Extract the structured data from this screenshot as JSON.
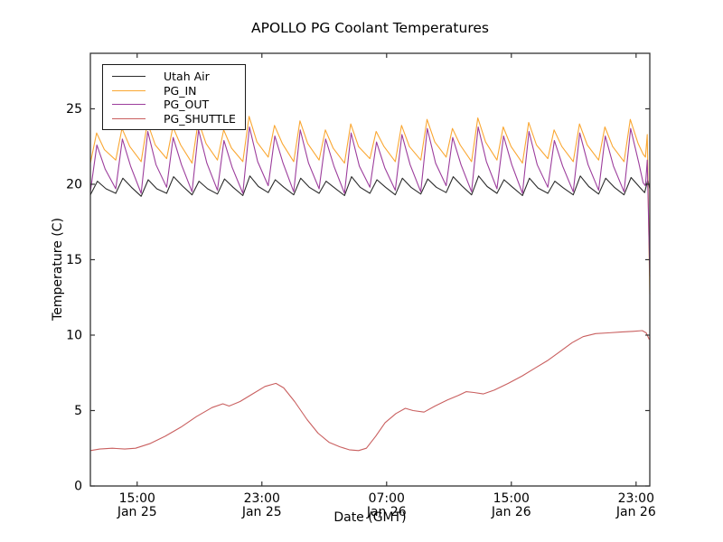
{
  "figure": {
    "title": "APOLLO PG Coolant Temperatures",
    "xlabel": "Date (GMT)",
    "ylabel": "Temperature (C)"
  },
  "colors": {
    "axis": "#333333",
    "background": "#ffffff",
    "utah_air": "#2b2b2b",
    "pg_in": "#faa732",
    "pg_out": "#9c3d9c",
    "pg_shuttle": "#c95f5f"
  },
  "chart_data": {
    "type": "line",
    "title": "APOLLO PG Coolant Temperatures",
    "xlabel": "Date (GMT)",
    "ylabel": "Temperature (C)",
    "grid": false,
    "legend_position": "upper left",
    "x_unit_hours_from": "Jan 25 12:00",
    "xlim": [
      0,
      35.88
    ],
    "ylim": [
      0,
      28.68
    ],
    "y_ticks": [
      0,
      5,
      10,
      15,
      20,
      25
    ],
    "x_ticks": [
      {
        "t": 3,
        "time": "15:00",
        "date": "Jan 25"
      },
      {
        "t": 11,
        "time": "23:00",
        "date": "Jan 25"
      },
      {
        "t": 19,
        "time": "07:00",
        "date": "Jan 26"
      },
      {
        "t": 27,
        "time": "15:00",
        "date": "Jan 26"
      },
      {
        "t": 35,
        "time": "23:00",
        "date": "Jan 26"
      }
    ],
    "series": [
      {
        "name": "Utah Air",
        "color": "#2b2b2b",
        "points": [
          [
            0.0,
            19.3
          ],
          [
            0.45,
            20.2
          ],
          [
            1.0,
            19.7
          ],
          [
            1.63,
            19.4
          ],
          [
            2.08,
            20.4
          ],
          [
            2.63,
            19.8
          ],
          [
            3.26,
            19.2
          ],
          [
            3.71,
            20.3
          ],
          [
            4.26,
            19.7
          ],
          [
            4.89,
            19.4
          ],
          [
            5.34,
            20.5
          ],
          [
            5.89,
            19.9
          ],
          [
            6.52,
            19.3
          ],
          [
            6.97,
            20.2
          ],
          [
            7.52,
            19.7
          ],
          [
            8.15,
            19.35
          ],
          [
            8.6,
            20.35
          ],
          [
            9.15,
            19.8
          ],
          [
            9.78,
            19.25
          ],
          [
            10.23,
            20.55
          ],
          [
            10.78,
            19.85
          ],
          [
            11.41,
            19.45
          ],
          [
            11.86,
            20.3
          ],
          [
            12.41,
            19.8
          ],
          [
            13.04,
            19.3
          ],
          [
            13.49,
            20.4
          ],
          [
            14.04,
            19.8
          ],
          [
            14.67,
            19.4
          ],
          [
            15.12,
            20.2
          ],
          [
            15.67,
            19.75
          ],
          [
            16.3,
            19.25
          ],
          [
            16.75,
            20.5
          ],
          [
            17.3,
            19.8
          ],
          [
            17.93,
            19.4
          ],
          [
            18.38,
            20.3
          ],
          [
            18.93,
            19.8
          ],
          [
            19.56,
            19.3
          ],
          [
            20.01,
            20.4
          ],
          [
            20.56,
            19.8
          ],
          [
            21.19,
            19.35
          ],
          [
            21.64,
            20.35
          ],
          [
            22.19,
            19.8
          ],
          [
            22.82,
            19.45
          ],
          [
            23.27,
            20.5
          ],
          [
            23.82,
            19.9
          ],
          [
            24.45,
            19.3
          ],
          [
            24.9,
            20.55
          ],
          [
            25.45,
            19.85
          ],
          [
            26.08,
            19.4
          ],
          [
            26.53,
            20.3
          ],
          [
            27.08,
            19.8
          ],
          [
            27.71,
            19.25
          ],
          [
            28.16,
            20.4
          ],
          [
            28.71,
            19.75
          ],
          [
            29.34,
            19.4
          ],
          [
            29.79,
            20.2
          ],
          [
            30.34,
            19.75
          ],
          [
            30.97,
            19.3
          ],
          [
            31.42,
            20.55
          ],
          [
            31.97,
            19.85
          ],
          [
            32.6,
            19.35
          ],
          [
            33.05,
            20.4
          ],
          [
            33.6,
            19.8
          ],
          [
            34.23,
            19.3
          ],
          [
            34.68,
            20.45
          ],
          [
            35.23,
            19.8
          ],
          [
            35.55,
            19.45
          ],
          [
            35.75,
            20.3
          ],
          [
            35.88,
            19.7
          ]
        ]
      },
      {
        "name": "PG_IN",
        "color": "#faa732",
        "points": [
          [
            0.0,
            21.4
          ],
          [
            0.4,
            23.4
          ],
          [
            0.9,
            22.3
          ],
          [
            1.63,
            21.6
          ],
          [
            2.03,
            23.7
          ],
          [
            2.53,
            22.5
          ],
          [
            3.26,
            21.5
          ],
          [
            3.66,
            24.1
          ],
          [
            4.16,
            22.6
          ],
          [
            4.89,
            21.7
          ],
          [
            5.29,
            23.8
          ],
          [
            5.79,
            22.6
          ],
          [
            6.52,
            21.4
          ],
          [
            6.92,
            24.2
          ],
          [
            7.42,
            22.7
          ],
          [
            8.15,
            21.6
          ],
          [
            8.55,
            23.6
          ],
          [
            9.05,
            22.4
          ],
          [
            9.78,
            21.5
          ],
          [
            10.18,
            24.5
          ],
          [
            10.68,
            22.8
          ],
          [
            11.41,
            21.8
          ],
          [
            11.81,
            23.9
          ],
          [
            12.31,
            22.7
          ],
          [
            13.04,
            21.5
          ],
          [
            13.44,
            24.2
          ],
          [
            13.94,
            22.7
          ],
          [
            14.67,
            21.6
          ],
          [
            15.07,
            23.6
          ],
          [
            15.57,
            22.4
          ],
          [
            16.3,
            21.4
          ],
          [
            16.7,
            24.0
          ],
          [
            17.2,
            22.5
          ],
          [
            17.93,
            21.7
          ],
          [
            18.33,
            23.5
          ],
          [
            18.83,
            22.5
          ],
          [
            19.56,
            21.5
          ],
          [
            19.96,
            23.9
          ],
          [
            20.46,
            22.5
          ],
          [
            21.19,
            21.6
          ],
          [
            21.59,
            24.3
          ],
          [
            22.09,
            22.8
          ],
          [
            22.82,
            21.8
          ],
          [
            23.22,
            23.7
          ],
          [
            23.72,
            22.6
          ],
          [
            24.45,
            21.5
          ],
          [
            24.85,
            24.4
          ],
          [
            25.35,
            22.8
          ],
          [
            26.08,
            21.6
          ],
          [
            26.48,
            23.8
          ],
          [
            26.98,
            22.5
          ],
          [
            27.71,
            21.4
          ],
          [
            28.11,
            24.1
          ],
          [
            28.61,
            22.6
          ],
          [
            29.34,
            21.7
          ],
          [
            29.74,
            23.6
          ],
          [
            30.24,
            22.5
          ],
          [
            30.97,
            21.5
          ],
          [
            31.37,
            24.0
          ],
          [
            31.87,
            22.6
          ],
          [
            32.6,
            21.6
          ],
          [
            33.0,
            23.8
          ],
          [
            33.5,
            22.5
          ],
          [
            34.23,
            21.5
          ],
          [
            34.63,
            24.3
          ],
          [
            35.13,
            22.7
          ],
          [
            35.45,
            22.0
          ],
          [
            35.6,
            21.8
          ],
          [
            35.72,
            23.3
          ],
          [
            35.88,
            12.7
          ]
        ]
      },
      {
        "name": "PG_OUT",
        "color": "#9c3d9c",
        "points": [
          [
            0.0,
            19.5
          ],
          [
            0.42,
            22.6
          ],
          [
            0.95,
            21.0
          ],
          [
            1.63,
            19.7
          ],
          [
            2.05,
            23.0
          ],
          [
            2.58,
            21.2
          ],
          [
            3.26,
            19.4
          ],
          [
            3.68,
            23.5
          ],
          [
            4.21,
            21.3
          ],
          [
            4.89,
            19.8
          ],
          [
            5.31,
            23.1
          ],
          [
            5.84,
            21.3
          ],
          [
            6.52,
            19.5
          ],
          [
            6.94,
            23.6
          ],
          [
            7.47,
            21.4
          ],
          [
            8.15,
            19.6
          ],
          [
            8.57,
            22.9
          ],
          [
            9.1,
            21.1
          ],
          [
            9.78,
            19.4
          ],
          [
            10.2,
            23.8
          ],
          [
            10.73,
            21.5
          ],
          [
            11.41,
            19.9
          ],
          [
            11.83,
            23.2
          ],
          [
            12.36,
            21.4
          ],
          [
            13.04,
            19.5
          ],
          [
            13.46,
            23.6
          ],
          [
            13.99,
            21.4
          ],
          [
            14.67,
            19.7
          ],
          [
            15.09,
            23.0
          ],
          [
            15.62,
            21.2
          ],
          [
            16.3,
            19.4
          ],
          [
            16.72,
            23.4
          ],
          [
            17.25,
            21.2
          ],
          [
            17.93,
            19.8
          ],
          [
            18.35,
            22.8
          ],
          [
            18.88,
            21.1
          ],
          [
            19.56,
            19.6
          ],
          [
            19.98,
            23.3
          ],
          [
            20.51,
            21.3
          ],
          [
            21.19,
            19.5
          ],
          [
            21.61,
            23.7
          ],
          [
            22.14,
            21.4
          ],
          [
            22.82,
            19.9
          ],
          [
            23.24,
            23.1
          ],
          [
            23.77,
            21.3
          ],
          [
            24.45,
            19.5
          ],
          [
            24.87,
            23.8
          ],
          [
            25.4,
            21.5
          ],
          [
            26.08,
            19.7
          ],
          [
            26.5,
            23.2
          ],
          [
            27.03,
            21.3
          ],
          [
            27.71,
            19.4
          ],
          [
            28.13,
            23.5
          ],
          [
            28.66,
            21.3
          ],
          [
            29.34,
            19.8
          ],
          [
            29.76,
            22.9
          ],
          [
            30.29,
            21.2
          ],
          [
            30.97,
            19.5
          ],
          [
            31.39,
            23.4
          ],
          [
            31.92,
            21.3
          ],
          [
            32.6,
            19.6
          ],
          [
            33.02,
            23.2
          ],
          [
            33.55,
            21.2
          ],
          [
            34.23,
            19.5
          ],
          [
            34.65,
            23.7
          ],
          [
            35.18,
            21.4
          ],
          [
            35.45,
            20.1
          ],
          [
            35.6,
            19.9
          ],
          [
            35.72,
            21.6
          ],
          [
            35.88,
            13.9
          ]
        ]
      },
      {
        "name": "PG_SHUTTLE",
        "color": "#c95f5f",
        "points": [
          [
            0,
            2.35
          ],
          [
            0.6,
            2.45
          ],
          [
            1.4,
            2.5
          ],
          [
            2.2,
            2.45
          ],
          [
            2.9,
            2.5
          ],
          [
            3.8,
            2.8
          ],
          [
            4.8,
            3.3
          ],
          [
            5.8,
            3.9
          ],
          [
            6.8,
            4.6
          ],
          [
            7.8,
            5.2
          ],
          [
            8.5,
            5.45
          ],
          [
            8.9,
            5.3
          ],
          [
            9.6,
            5.6
          ],
          [
            10.4,
            6.1
          ],
          [
            11.2,
            6.6
          ],
          [
            11.9,
            6.8
          ],
          [
            12.4,
            6.5
          ],
          [
            13.1,
            5.6
          ],
          [
            13.9,
            4.4
          ],
          [
            14.6,
            3.5
          ],
          [
            15.3,
            2.9
          ],
          [
            16.0,
            2.6
          ],
          [
            16.6,
            2.4
          ],
          [
            17.2,
            2.35
          ],
          [
            17.7,
            2.5
          ],
          [
            18.3,
            3.3
          ],
          [
            18.9,
            4.2
          ],
          [
            19.6,
            4.8
          ],
          [
            20.2,
            5.15
          ],
          [
            20.7,
            5.0
          ],
          [
            21.4,
            4.9
          ],
          [
            22.1,
            5.3
          ],
          [
            22.9,
            5.7
          ],
          [
            23.6,
            6.0
          ],
          [
            24.1,
            6.25
          ],
          [
            24.6,
            6.2
          ],
          [
            25.2,
            6.1
          ],
          [
            25.9,
            6.35
          ],
          [
            26.8,
            6.8
          ],
          [
            27.7,
            7.3
          ],
          [
            28.5,
            7.8
          ],
          [
            29.3,
            8.3
          ],
          [
            30.1,
            8.9
          ],
          [
            30.9,
            9.5
          ],
          [
            31.6,
            9.9
          ],
          [
            32.4,
            10.1
          ],
          [
            33.2,
            10.15
          ],
          [
            34.0,
            10.2
          ],
          [
            34.8,
            10.25
          ],
          [
            35.4,
            10.3
          ],
          [
            35.65,
            10.15
          ],
          [
            35.85,
            9.7
          ]
        ]
      }
    ]
  }
}
